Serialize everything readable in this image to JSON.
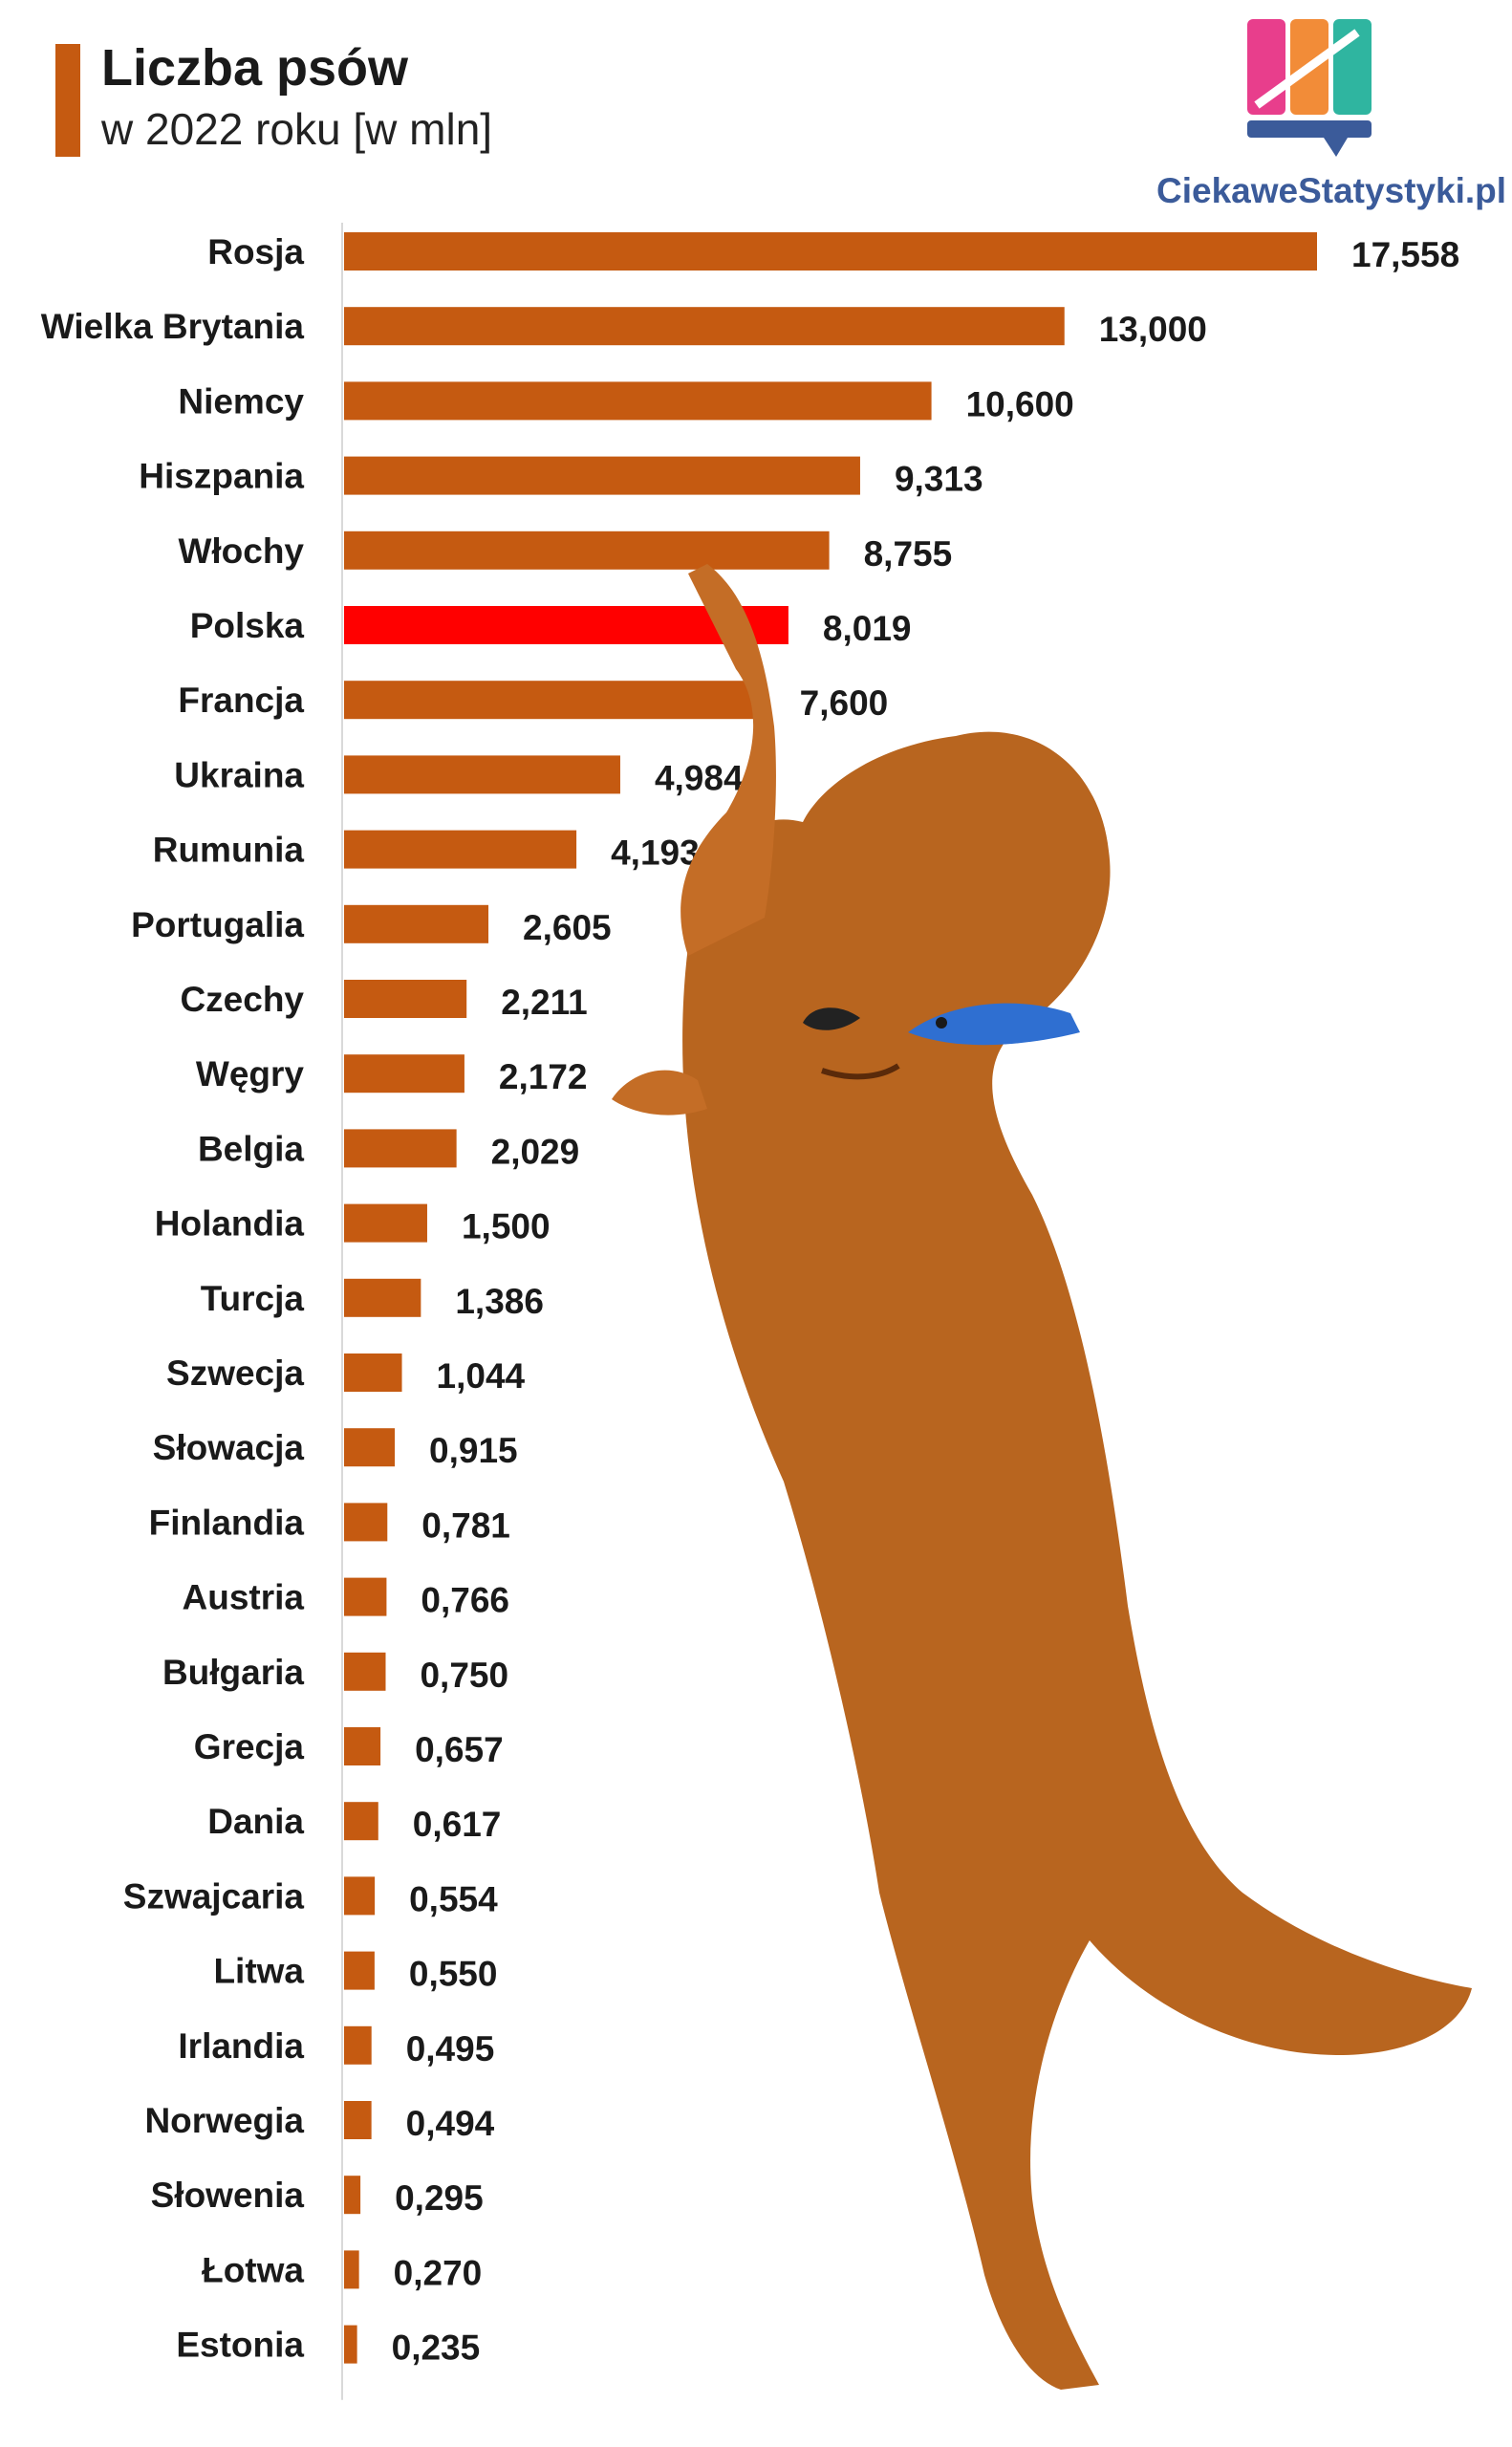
{
  "header": {
    "title": "Liczba psów",
    "subtitle": "w 2022 roku [w mln]"
  },
  "logo": {
    "text": "CiekaweStatystyki.pl"
  },
  "colors": {
    "bar": "#C55A11",
    "highlight": "#FF0000",
    "accent": "#C55A11"
  },
  "chart_data": {
    "type": "bar",
    "orientation": "horizontal",
    "title": "Liczba psów",
    "subtitle": "w 2022 roku [w mln]",
    "categories": [
      "Rosja",
      "Wielka Brytania",
      "Niemcy",
      "Hiszpania",
      "Włochy",
      "Polska",
      "Francja",
      "Ukraina",
      "Rumunia",
      "Portugalia",
      "Czechy",
      "Węgry",
      "Belgia",
      "Holandia",
      "Turcja",
      "Szwecja",
      "Słowacja",
      "Finlandia",
      "Austria",
      "Bułgaria",
      "Grecja",
      "Dania",
      "Szwajcaria",
      "Litwa",
      "Irlandia",
      "Norwegia",
      "Słowenia",
      "Łotwa",
      "Estonia"
    ],
    "values": [
      17.558,
      13.0,
      10.6,
      9.313,
      8.755,
      8.019,
      7.6,
      4.984,
      4.193,
      2.605,
      2.211,
      2.172,
      2.029,
      1.5,
      1.386,
      1.044,
      0.915,
      0.781,
      0.766,
      0.75,
      0.657,
      0.617,
      0.554,
      0.55,
      0.495,
      0.494,
      0.295,
      0.27,
      0.235
    ],
    "value_labels": [
      "17,558",
      "13,000",
      "10,600",
      "9,313",
      "8,755",
      "8,019",
      "7,600",
      "4,984",
      "4,193",
      "2,605",
      "2,211",
      "2,172",
      "2,029",
      "1,500",
      "1,386",
      "1,044",
      "0,915",
      "0,781",
      "0,766",
      "0,750",
      "0,657",
      "0,617",
      "0,554",
      "0,550",
      "0,495",
      "0,494",
      "0,295",
      "0,270",
      "0,235"
    ],
    "highlight": "Polska",
    "xlim": [
      0,
      17.558
    ],
    "grid": false,
    "legend": "none"
  }
}
